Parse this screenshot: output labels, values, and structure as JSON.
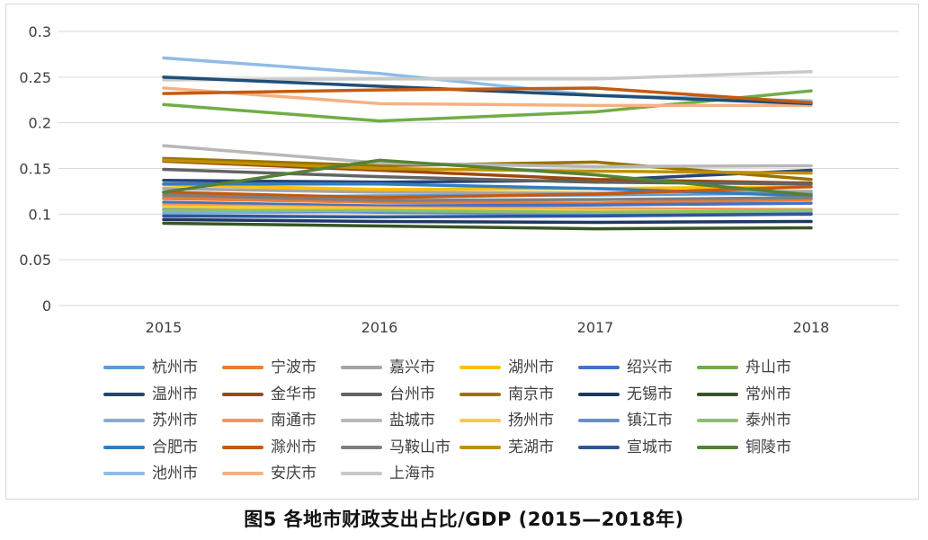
{
  "caption": "图5 各地市财政支出占比/GDP (2015—2018年)",
  "chart_data": {
    "type": "line",
    "title": "",
    "xlabel": "",
    "ylabel": "",
    "ylim": [
      0,
      0.3
    ],
    "grid": true,
    "legend_position": "bottom",
    "x": [
      "2015",
      "2016",
      "2017",
      "2018"
    ],
    "y_ticks": [
      "0",
      "0.05",
      "0.1",
      "0.15",
      "0.2",
      "0.25",
      "0.3"
    ],
    "series": [
      {
        "name": "杭州市",
        "color": "#5b9bd5",
        "values": [
          0.118,
          0.12,
          0.121,
          0.123
        ]
      },
      {
        "name": "宁波市",
        "color": "#ed7d31",
        "values": [
          0.117,
          0.113,
          0.112,
          0.116
        ]
      },
      {
        "name": "嘉兴市",
        "color": "#a5a5a5",
        "values": [
          0.128,
          0.124,
          0.123,
          0.125
        ]
      },
      {
        "name": "湖州市",
        "color": "#ffc000",
        "values": [
          0.132,
          0.127,
          0.128,
          0.13
        ]
      },
      {
        "name": "绍兴市",
        "color": "#4472c4",
        "values": [
          0.113,
          0.109,
          0.11,
          0.112
        ]
      },
      {
        "name": "舟山市",
        "color": "#70ad47",
        "values": [
          0.22,
          0.202,
          0.212,
          0.235
        ]
      },
      {
        "name": "温州市",
        "color": "#264478",
        "values": [
          0.137,
          0.135,
          0.137,
          0.148
        ]
      },
      {
        "name": "金华市",
        "color": "#9e480e",
        "values": [
          0.158,
          0.148,
          0.138,
          0.134
        ]
      },
      {
        "name": "台州市",
        "color": "#636363",
        "values": [
          0.149,
          0.141,
          0.135,
          0.133
        ]
      },
      {
        "name": "南京市",
        "color": "#997300",
        "values": [
          0.161,
          0.153,
          0.157,
          0.138
        ]
      },
      {
        "name": "无锡市",
        "color": "#203864",
        "values": [
          0.094,
          0.092,
          0.091,
          0.092
        ]
      },
      {
        "name": "常州市",
        "color": "#375623",
        "values": [
          0.09,
          0.087,
          0.084,
          0.085
        ]
      },
      {
        "name": "苏州市",
        "color": "#7cafdd",
        "values": [
          0.101,
          0.103,
          0.104,
          0.102
        ]
      },
      {
        "name": "南通市",
        "color": "#f1975a",
        "values": [
          0.11,
          0.107,
          0.106,
          0.105
        ]
      },
      {
        "name": "盐城市",
        "color": "#b7b7b7",
        "values": [
          0.175,
          0.156,
          0.152,
          0.153
        ]
      },
      {
        "name": "扬州市",
        "color": "#ffcd33",
        "values": [
          0.108,
          0.106,
          0.104,
          0.103
        ]
      },
      {
        "name": "镇江市",
        "color": "#698ed0",
        "values": [
          0.105,
          0.102,
          0.1,
          0.101
        ]
      },
      {
        "name": "泰州市",
        "color": "#8cc168",
        "values": [
          0.104,
          0.104,
          0.102,
          0.104
        ]
      },
      {
        "name": "合肥市",
        "color": "#327dc2",
        "values": [
          0.133,
          0.133,
          0.128,
          0.12
        ]
      },
      {
        "name": "滁州市",
        "color": "#c55a11",
        "values": [
          0.124,
          0.118,
          0.122,
          0.13
        ]
      },
      {
        "name": "马鞍山市",
        "color": "#7f7f7f",
        "values": [
          0.121,
          0.115,
          0.116,
          0.118
        ]
      },
      {
        "name": "芜湖市",
        "color": "#bf9000",
        "values": [
          0.159,
          0.15,
          0.147,
          0.145
        ]
      },
      {
        "name": "宣城市",
        "color": "#2f5597",
        "values": [
          0.098,
          0.097,
          0.098,
          0.1
        ]
      },
      {
        "name": "铜陵市",
        "color": "#548235",
        "values": [
          0.124,
          0.159,
          0.143,
          0.121
        ]
      },
      {
        "name": "池州市",
        "color": "#8fbce6",
        "values": [
          0.271,
          0.254,
          0.23,
          0.224
        ]
      },
      {
        "name": "安庆市",
        "color": "#f4b183",
        "values": [
          0.238,
          0.221,
          0.219,
          0.219
        ]
      },
      {
        "name": "上海市",
        "color": "#c9c9c9",
        "values": [
          0.247,
          0.248,
          0.248,
          0.256
        ]
      },
      {
        "name": "",
        "color": "#1f4e79",
        "values": [
          0.25,
          0.24,
          0.23,
          0.221
        ]
      },
      {
        "name": "",
        "color": "#c55a11",
        "values": [
          0.232,
          0.236,
          0.238,
          0.222
        ]
      }
    ]
  }
}
